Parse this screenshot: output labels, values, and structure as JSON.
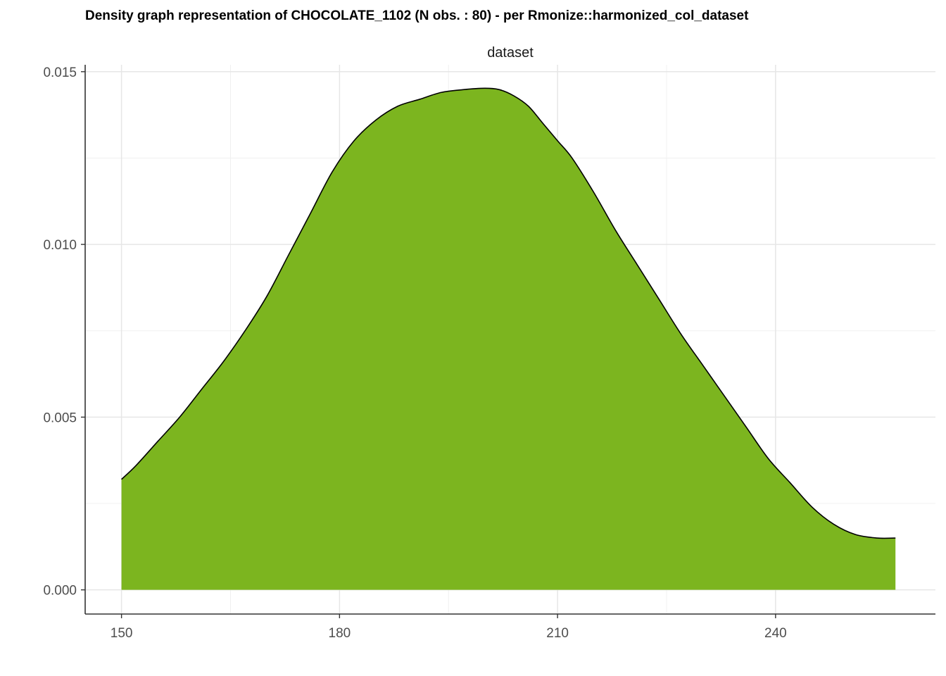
{
  "chart_data": {
    "type": "area",
    "title": "Density graph representation of CHOCOLATE_1102 (N obs. : 80) - per Rmonize::harmonized_col_dataset",
    "panel_label": "dataset",
    "xlabel": "",
    "ylabel": "",
    "xlim": [
      145,
      262
    ],
    "ylim": [
      -0.0007,
      0.0152
    ],
    "x_ticks": [
      150,
      180,
      210,
      240
    ],
    "x_tick_labels": [
      "150",
      "180",
      "210",
      "240"
    ],
    "y_ticks": [
      0.0,
      0.005,
      0.01,
      0.015
    ],
    "y_tick_labels": [
      "0.000",
      "0.005",
      "0.010",
      "0.015"
    ],
    "grid": true,
    "fill_color": "#7cb51f",
    "line_color": "#000000",
    "series": [
      {
        "x": [
          150,
          152,
          155,
          158,
          161,
          164,
          167,
          170,
          173,
          176,
          179,
          182,
          185,
          188,
          191,
          194,
          197,
          200,
          202,
          204,
          206,
          208,
          210,
          212,
          215,
          218,
          221,
          224,
          227,
          230,
          233,
          236,
          239,
          242,
          245,
          248,
          251,
          254,
          256.5
        ],
        "values": [
          0.0032,
          0.0036,
          0.0043,
          0.005,
          0.0058,
          0.0066,
          0.0075,
          0.0085,
          0.0097,
          0.0109,
          0.0121,
          0.013,
          0.0136,
          0.014,
          0.0142,
          0.0144,
          0.01448,
          0.01452,
          0.01448,
          0.0143,
          0.014,
          0.0135,
          0.013,
          0.0125,
          0.0115,
          0.0104,
          0.0094,
          0.0084,
          0.0074,
          0.0065,
          0.0056,
          0.0047,
          0.0038,
          0.0031,
          0.0024,
          0.0019,
          0.0016,
          0.0015,
          0.0015
        ]
      }
    ]
  }
}
